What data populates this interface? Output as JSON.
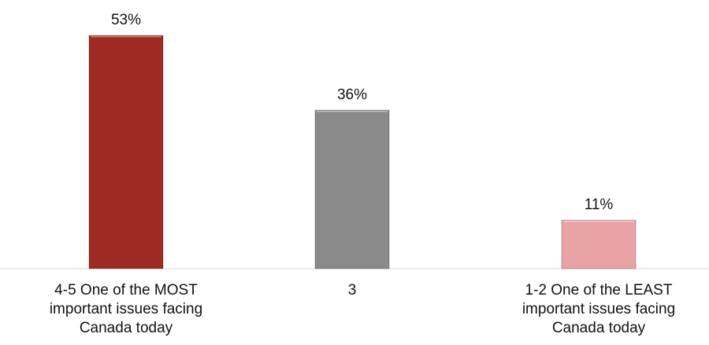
{
  "chart_data": {
    "type": "bar",
    "categories": [
      "4-5 One of the MOST important issues facing Canada today",
      "3",
      "1-2 One of the LEAST important issues facing Canada today"
    ],
    "category_lines": [
      [
        "4-5 One of the MOST",
        "important issues facing",
        "Canada today"
      ],
      [
        "3"
      ],
      [
        "1-2 One of the LEAST",
        "important issues facing",
        "Canada today"
      ]
    ],
    "values": [
      53,
      36,
      11
    ],
    "value_labels": [
      "53%",
      "36%",
      "11%"
    ],
    "unit": "%",
    "colors": [
      "#9e2a24",
      "#8a8a8a",
      "#e9a3a5"
    ],
    "ylim": [
      0,
      55
    ],
    "gridlines": false,
    "legend": "none"
  }
}
